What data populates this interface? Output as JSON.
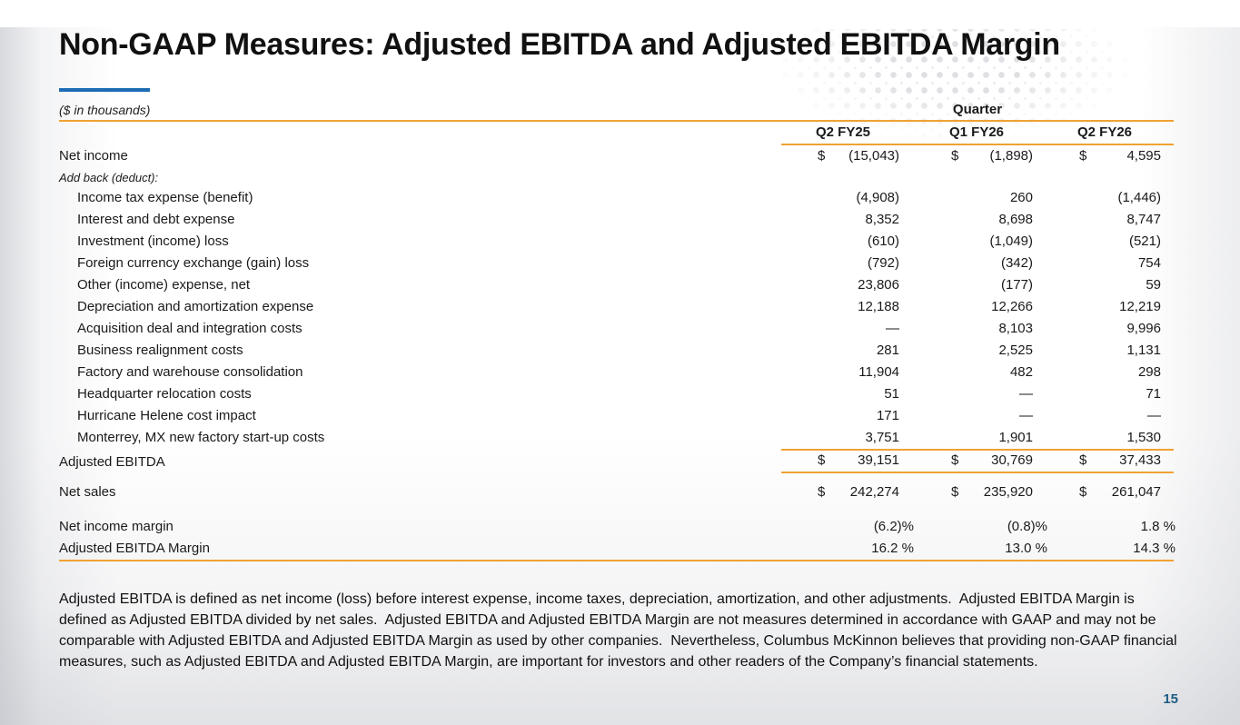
{
  "slide": {
    "title": "Non-GAAP Measures: Adjusted EBITDA and Adjusted EBITDA Margin",
    "page_number": "15",
    "footnote": "Adjusted EBITDA is defined as net income (loss) before interest expense, income taxes, depreciation, amortization, and other adjustments.  Adjusted EBITDA Margin is defined as Adjusted EBITDA divided by net sales.  Adjusted EBITDA and Adjusted EBITDA Margin are not measures determined in accordance with GAAP and may not be comparable with Adjusted EBITDA and Adjusted EBITDA Margin as used by other companies.  Nevertheless, Columbus McKinnon believes that providing non-GAAP financial measures, such as Adjusted EBITDA and Adjusted EBITDA Margin, are important for investors and other readers of the Company’s financial statements."
  },
  "table": {
    "units_note": "($ in thousands)",
    "group_header": "Quarter",
    "columns": [
      "Q2 FY25",
      "Q1 FY26",
      "Q2 FY26"
    ],
    "rows": [
      {
        "label": "Net income",
        "dollar": true,
        "style": "",
        "values": [
          "(15,043)",
          "(1,898)",
          "4,595"
        ]
      },
      {
        "label": "Add back (deduct):",
        "dollar": false,
        "style": "section",
        "values": [
          "",
          "",
          ""
        ]
      },
      {
        "label": "Income tax expense (benefit)",
        "style": "indent",
        "values": [
          "(4,908)",
          "260",
          "(1,446)"
        ]
      },
      {
        "label": "Interest and debt expense",
        "style": "indent",
        "values": [
          "8,352",
          "8,698",
          "8,747"
        ]
      },
      {
        "label": "Investment (income) loss",
        "style": "indent",
        "values": [
          "(610)",
          "(1,049)",
          "(521)"
        ]
      },
      {
        "label": "Foreign currency exchange (gain) loss",
        "style": "indent",
        "values": [
          "(792)",
          "(342)",
          "754"
        ]
      },
      {
        "label": "Other (income) expense, net",
        "style": "indent",
        "values": [
          "23,806",
          "(177)",
          "59"
        ]
      },
      {
        "label": "Depreciation and amortization expense",
        "style": "indent",
        "values": [
          "12,188",
          "12,266",
          "12,219"
        ]
      },
      {
        "label": "Acquisition deal and integration costs",
        "style": "indent",
        "values": [
          "—",
          "8,103",
          "9,996"
        ]
      },
      {
        "label": "Business realignment costs",
        "style": "indent",
        "values": [
          "281",
          "2,525",
          "1,131"
        ]
      },
      {
        "label": "Factory and warehouse consolidation",
        "style": "indent",
        "values": [
          "11,904",
          "482",
          "298"
        ]
      },
      {
        "label": "Headquarter relocation costs",
        "style": "indent",
        "values": [
          "51",
          "—",
          "71"
        ]
      },
      {
        "label": "Hurricane Helene cost impact",
        "style": "indent",
        "values": [
          "171",
          "—",
          "—"
        ]
      },
      {
        "label": "Monterrey, MX new factory start-up costs",
        "style": "indent",
        "values": [
          "3,751",
          "1,901",
          "1,530"
        ]
      },
      {
        "label": "Adjusted EBITDA",
        "dollar": true,
        "style": "total",
        "values": [
          "39,151",
          "30,769",
          "37,433"
        ]
      },
      {
        "label": "Net sales",
        "dollar": true,
        "style": "spaced",
        "values": [
          "242,274",
          "235,920",
          "261,047"
        ]
      },
      {
        "label": "Net income margin",
        "style": "pct spaced-lg",
        "values": [
          "(6.2)%",
          "(0.8)%",
          "1.8 %"
        ]
      },
      {
        "label": "Adjusted EBITDA Margin",
        "style": "pct last",
        "values": [
          "16.2 %",
          "13.0 %",
          "14.3 %"
        ]
      }
    ]
  },
  "colors": {
    "accent_orange": "#F0A232",
    "accent_blue": "#1C6BB3",
    "page_number_blue": "#1D5C84",
    "halftone_dot_gray": "#DFE0E3"
  }
}
